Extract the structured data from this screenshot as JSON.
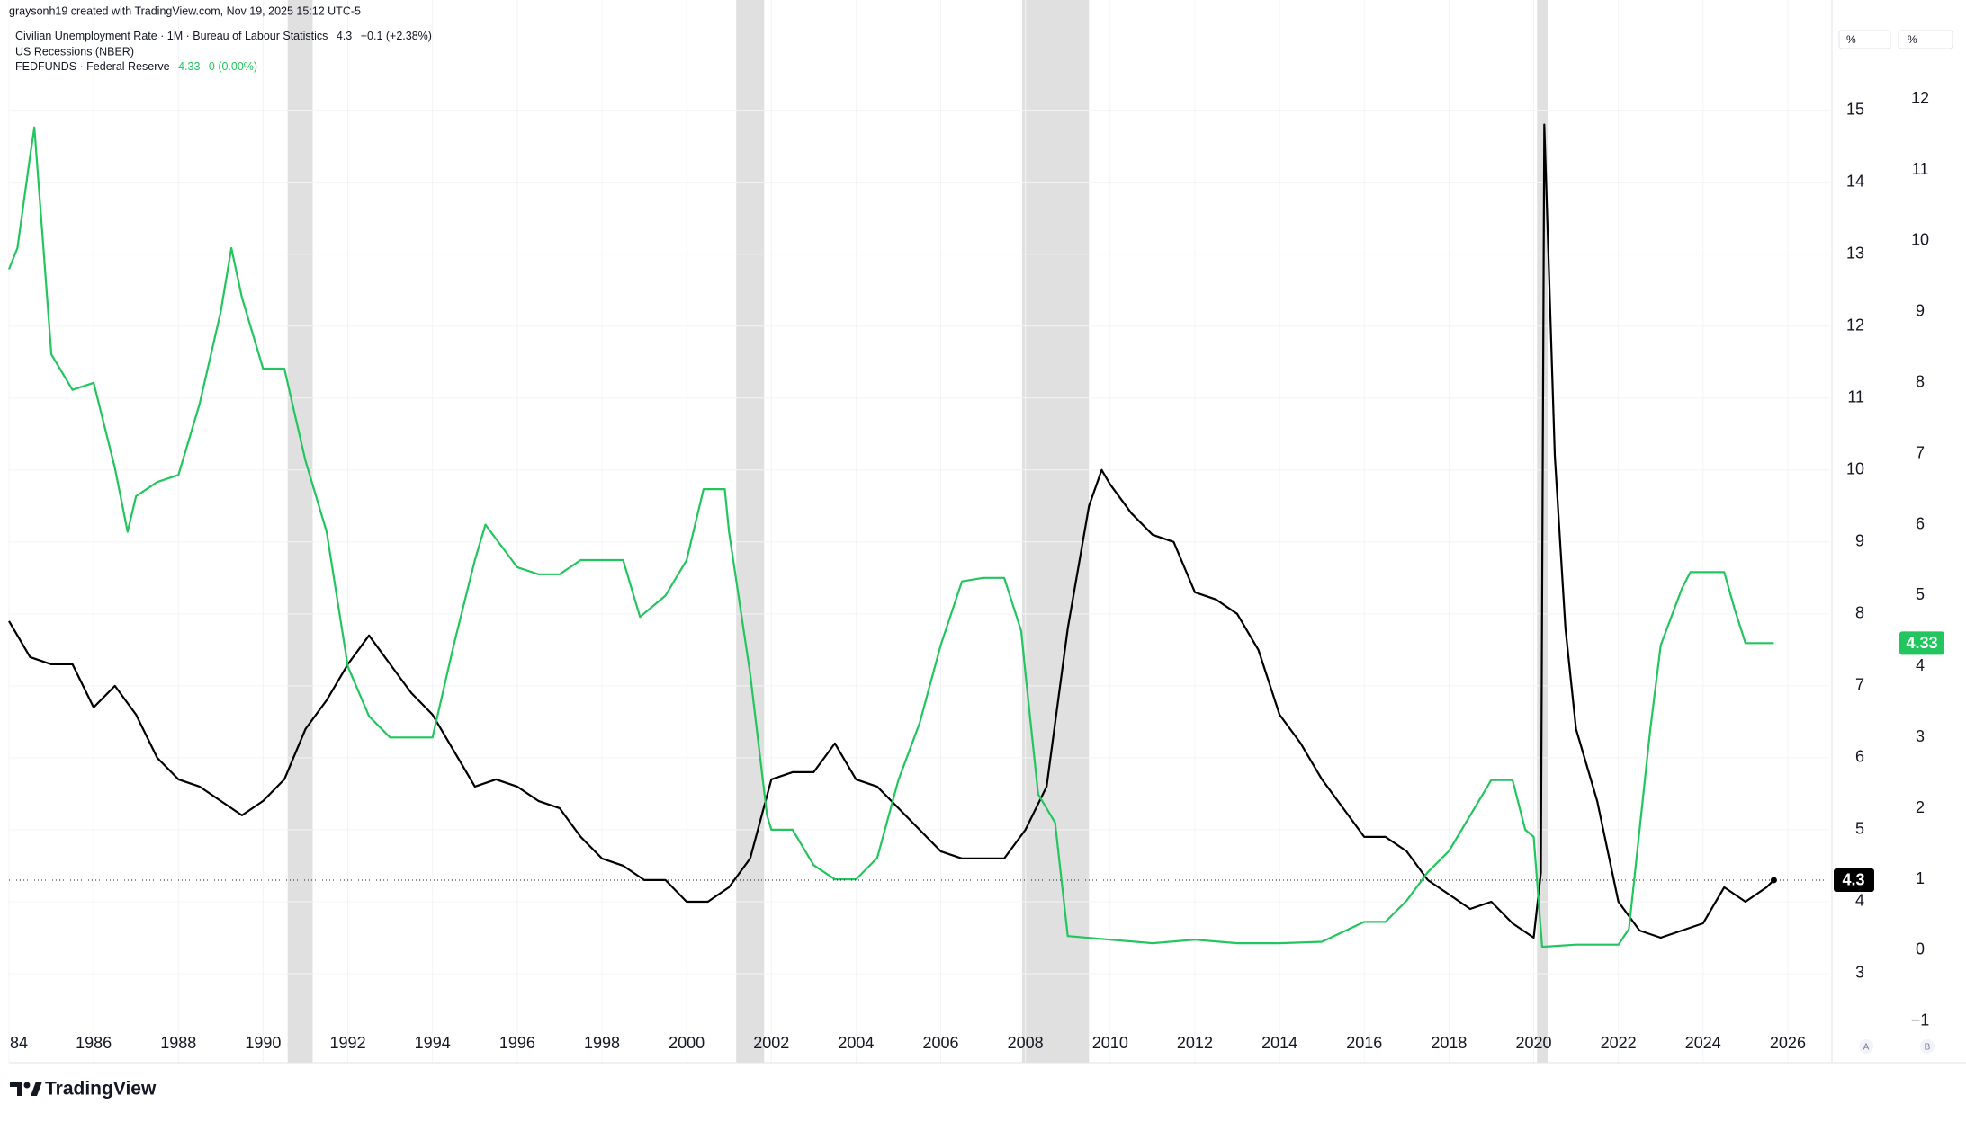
{
  "chart_data": {
    "type": "line",
    "header": "graysonh19 created with TradingView.com, Nov 19, 2025 15:12 UTC-5",
    "brand": "TradingView",
    "axis_unit": "%",
    "axis_unit_2": "%",
    "scale_buttons": [
      "A",
      "B"
    ],
    "xlim": [
      1984,
      2027
    ],
    "xticks": [
      {
        "value": 1984,
        "label": "84"
      },
      1986,
      1988,
      1990,
      1992,
      1994,
      1996,
      1998,
      2000,
      2002,
      2004,
      2006,
      2008,
      2010,
      2012,
      2014,
      2016,
      2018,
      2020,
      2022,
      2024,
      2026
    ],
    "ylim": [
      2.25,
      16.27
    ],
    "yticks": [
      3,
      4,
      5,
      6,
      7,
      8,
      9,
      10,
      11,
      12,
      13,
      14,
      15
    ],
    "y2lim": [
      -1.09,
      13.13
    ],
    "y2ticks": [
      {
        "value": -1,
        "label": "−1"
      },
      0,
      1,
      2,
      3,
      4,
      5,
      6,
      7,
      8,
      9,
      10,
      11,
      12
    ],
    "grid": true,
    "recessions": {
      "name": "US Recessions (NBER)",
      "color": "#e0e0e0",
      "spans": [
        [
          1990.58,
          1991.17
        ],
        [
          2001.17,
          2001.83
        ],
        [
          2007.92,
          2009.5
        ],
        [
          2020.08,
          2020.33
        ]
      ]
    },
    "series": [
      {
        "name": "Civilian Unemployment Rate · 1M · Bureau of Labour Statistics",
        "color": "#000000",
        "axis": "y",
        "change_label": "+0.1 (+2.38%)",
        "x": [
          1984,
          1984.5,
          1985,
          1985.5,
          1986,
          1986.5,
          1987,
          1987.5,
          1988,
          1988.5,
          1989,
          1989.5,
          1990,
          1990.5,
          1991,
          1991.5,
          1992,
          1992.5,
          1993,
          1993.5,
          1994,
          1994.5,
          1995,
          1995.5,
          1996,
          1996.5,
          1997,
          1997.5,
          1998,
          1998.5,
          1999,
          1999.5,
          2000,
          2000.5,
          2001,
          2001.5,
          2002,
          2002.5,
          2003,
          2003.5,
          2004,
          2004.5,
          2005,
          2005.5,
          2006,
          2006.5,
          2007,
          2007.5,
          2008,
          2008.5,
          2009,
          2009.5,
          2009.8,
          2010,
          2010.5,
          2011,
          2011.5,
          2012,
          2012.5,
          2013,
          2013.5,
          2014,
          2014.5,
          2015,
          2015.5,
          2016,
          2016.5,
          2017,
          2017.5,
          2018,
          2018.5,
          2019,
          2019.5,
          2020,
          2020.17,
          2020.25,
          2020.5,
          2020.75,
          2021,
          2021.5,
          2022,
          2022.5,
          2023,
          2023.5,
          2024,
          2024.5,
          2025,
          2025.5,
          2025.67
        ],
        "values": [
          7.9,
          7.4,
          7.3,
          7.3,
          6.7,
          7.0,
          6.6,
          6.0,
          5.7,
          5.6,
          5.4,
          5.2,
          5.4,
          5.7,
          6.4,
          6.8,
          7.3,
          7.7,
          7.3,
          6.9,
          6.6,
          6.1,
          5.6,
          5.7,
          5.6,
          5.4,
          5.3,
          4.9,
          4.6,
          4.5,
          4.3,
          4.3,
          4.0,
          4.0,
          4.2,
          4.6,
          5.7,
          5.8,
          5.8,
          6.2,
          5.7,
          5.6,
          5.3,
          5.0,
          4.7,
          4.6,
          4.6,
          4.6,
          5.0,
          5.6,
          7.8,
          9.5,
          10.0,
          9.8,
          9.4,
          9.1,
          9.0,
          8.3,
          8.2,
          8.0,
          7.5,
          6.6,
          6.2,
          5.7,
          5.3,
          4.9,
          4.9,
          4.7,
          4.3,
          4.1,
          3.9,
          4.0,
          3.7,
          3.5,
          4.4,
          14.8,
          10.2,
          7.8,
          6.4,
          5.4,
          4.0,
          3.6,
          3.5,
          3.6,
          3.7,
          4.2,
          4.0,
          4.2,
          4.3
        ]
      },
      {
        "name": "FEDFUNDS · Federal Reserve",
        "color": "#22c55e",
        "axis": "y2",
        "change_label": "0 (0.00%)",
        "x": [
          1984,
          1984.2,
          1984.5,
          1984.6,
          1984.8,
          1985,
          1985.5,
          1986,
          1986.5,
          1986.8,
          1987,
          1987.5,
          1988,
          1988.5,
          1989,
          1989.25,
          1989.5,
          1990,
          1990.5,
          1991,
          1991.5,
          1992,
          1992.5,
          1993,
          1993.5,
          1994,
          1994.5,
          1995,
          1995.25,
          1995.5,
          1996,
          1996.5,
          1997,
          1997.5,
          1998,
          1998.5,
          1998.9,
          1999.5,
          2000,
          2000.4,
          2000.9,
          2001,
          2001.5,
          2001.9,
          2002,
          2002.5,
          2003,
          2003.5,
          2004,
          2004.5,
          2005,
          2005.5,
          2006,
          2006.5,
          2007,
          2007.5,
          2007.9,
          2008,
          2008.3,
          2008.7,
          2009,
          2010,
          2011,
          2012,
          2013,
          2014,
          2015,
          2016,
          2016.5,
          2017,
          2017.5,
          2018,
          2018.5,
          2019,
          2019.5,
          2019.8,
          2020,
          2020.2,
          2021,
          2022,
          2022.25,
          2022.5,
          2022.75,
          2023,
          2023.5,
          2023.7,
          2024.5,
          2024.75,
          2025,
          2025.67
        ],
        "values": [
          9.6,
          9.9,
          11.2,
          11.6,
          10.0,
          8.4,
          7.9,
          8.0,
          6.8,
          5.9,
          6.4,
          6.6,
          6.7,
          7.7,
          9.0,
          9.9,
          9.2,
          8.2,
          8.2,
          6.9,
          5.9,
          4.0,
          3.3,
          3.0,
          3.0,
          3.0,
          4.3,
          5.5,
          6.0,
          5.8,
          5.4,
          5.3,
          5.3,
          5.5,
          5.5,
          5.5,
          4.7,
          5.0,
          5.5,
          6.5,
          6.5,
          5.9,
          3.9,
          1.9,
          1.7,
          1.7,
          1.2,
          1.0,
          1.0,
          1.3,
          2.4,
          3.2,
          4.3,
          5.2,
          5.25,
          5.25,
          4.5,
          3.9,
          2.2,
          1.8,
          0.2,
          0.15,
          0.1,
          0.15,
          0.1,
          0.1,
          0.12,
          0.4,
          0.4,
          0.7,
          1.1,
          1.4,
          1.9,
          2.4,
          2.4,
          1.7,
          1.6,
          0.05,
          0.08,
          0.08,
          0.3,
          1.7,
          3.1,
          4.3,
          5.1,
          5.33,
          5.33,
          4.8,
          4.33,
          4.33
        ]
      }
    ]
  }
}
